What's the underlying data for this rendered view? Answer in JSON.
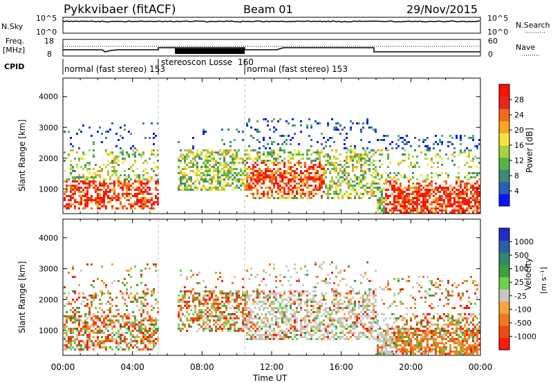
{
  "header": {
    "radar": "Pykkvibaer (fitACF)",
    "beam": "Beam 01",
    "date": "29/Nov/2015"
  },
  "top_panels": {
    "nsky_label": "N.Sky",
    "nsky_ticks": [
      "10^5",
      "10^0"
    ],
    "nsearch_label": "N.Search",
    "freq_label_1": "Freq.",
    "freq_label_2": "[MHz]",
    "freq_ticks": [
      "18",
      "8"
    ],
    "nave_ticks": [
      "60",
      "0"
    ],
    "nave_label": "Nave",
    "cpid_label": "CPID",
    "cpid_segments": [
      {
        "label": "normal (fast stereo)",
        "code": "153"
      },
      {
        "label": "stereoscon Losse",
        "code": "160"
      },
      {
        "label": "normal (fast stereo)",
        "code": "153"
      }
    ]
  },
  "chart_data": [
    {
      "type": "heatmap",
      "panel": "power",
      "ylabel": "Slant Range [km]",
      "yticks": [
        "1000",
        "2000",
        "3000",
        "4000"
      ],
      "ylim": [
        200,
        4600
      ],
      "xlim_hours": [
        0,
        24
      ],
      "colorbar_label": "Power [dB]",
      "colorbar_ticks": [
        "4",
        "8",
        "12",
        "16",
        "20",
        "24",
        "28"
      ],
      "colorbar_colors": [
        "#0a14ff",
        "#2a5fb8",
        "#3c8a78",
        "#58b24c",
        "#a8d040",
        "#f3e63a",
        "#f5a623",
        "#f06a1a",
        "#e8281a",
        "#ff1000"
      ],
      "clim": [
        0,
        30
      ]
    },
    {
      "type": "heatmap",
      "panel": "velocity",
      "ylabel": "Slant Range [km]",
      "yticks": [
        "1000",
        "2000",
        "3000",
        "4000"
      ],
      "ylim": [
        200,
        4600
      ],
      "xlim_hours": [
        0,
        24
      ],
      "colorbar_label": "Velocity",
      "colorbar_units": "[m s⁻¹]",
      "colorbar_ticks": [
        "-1000",
        "-500",
        "-100",
        "-25",
        "25",
        "100",
        "500",
        "1000"
      ],
      "colorbar_colors": [
        "#ff1a00",
        "#f24a10",
        "#f07a1a",
        "#f4a53a",
        "#c8c8c0",
        "#6cd048",
        "#3aa040",
        "#2f8a6a",
        "#2c5fa8",
        "#1e2fc8"
      ],
      "clim": [
        -1200,
        1200
      ]
    }
  ],
  "time_axis": {
    "xlabel": "Time UT",
    "ticks": [
      "00:00",
      "04:00",
      "08:00",
      "12:00",
      "16:00",
      "20:00",
      "00:00"
    ]
  }
}
